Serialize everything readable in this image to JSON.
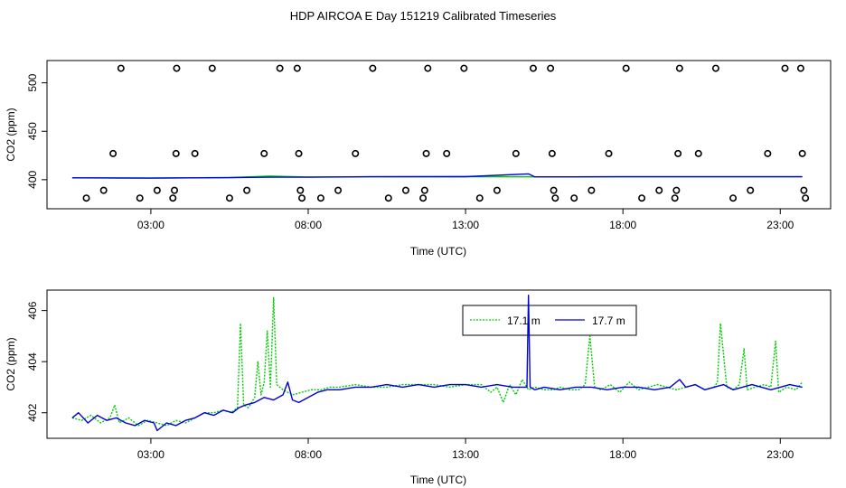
{
  "title": "HDP AIRCOA E  Day 151219  Calibrated Timeseries",
  "chart_data": [
    {
      "type": "scatter",
      "xlabel": "Time (UTC)",
      "ylabel": "CO2 (ppm)",
      "x_unit": "hours UTC",
      "xlim": [
        -0.3,
        24.6
      ],
      "ylim": [
        370,
        523
      ],
      "x_ticks": [
        3,
        8,
        13,
        18,
        23
      ],
      "x_tick_labels": [
        "03:00",
        "08:00",
        "13:00",
        "18:00",
        "23:00"
      ],
      "y_ticks": [
        400,
        450,
        500
      ],
      "y_tick_labels": [
        "400",
        "450",
        "500"
      ],
      "calibration_points": [
        {
          "x": 0.95,
          "y": 381
        },
        {
          "x": 1.5,
          "y": 389
        },
        {
          "x": 1.8,
          "y": 427
        },
        {
          "x": 2.05,
          "y": 515
        },
        {
          "x": 2.65,
          "y": 381
        },
        {
          "x": 3.2,
          "y": 389
        },
        {
          "x": 3.7,
          "y": 381
        },
        {
          "x": 3.75,
          "y": 389
        },
        {
          "x": 3.8,
          "y": 427
        },
        {
          "x": 3.82,
          "y": 515
        },
        {
          "x": 4.4,
          "y": 427
        },
        {
          "x": 4.95,
          "y": 515
        },
        {
          "x": 5.5,
          "y": 381
        },
        {
          "x": 6.05,
          "y": 389
        },
        {
          "x": 6.6,
          "y": 427
        },
        {
          "x": 7.1,
          "y": 515
        },
        {
          "x": 7.65,
          "y": 515
        },
        {
          "x": 7.7,
          "y": 427
        },
        {
          "x": 7.75,
          "y": 389
        },
        {
          "x": 7.8,
          "y": 381
        },
        {
          "x": 8.4,
          "y": 381
        },
        {
          "x": 8.95,
          "y": 389
        },
        {
          "x": 9.5,
          "y": 427
        },
        {
          "x": 10.05,
          "y": 515
        },
        {
          "x": 10.55,
          "y": 381
        },
        {
          "x": 11.1,
          "y": 389
        },
        {
          "x": 11.65,
          "y": 381
        },
        {
          "x": 11.7,
          "y": 389
        },
        {
          "x": 11.75,
          "y": 427
        },
        {
          "x": 11.8,
          "y": 515
        },
        {
          "x": 12.4,
          "y": 427
        },
        {
          "x": 12.95,
          "y": 515
        },
        {
          "x": 13.45,
          "y": 381
        },
        {
          "x": 14.0,
          "y": 389
        },
        {
          "x": 14.6,
          "y": 427
        },
        {
          "x": 15.15,
          "y": 515
        },
        {
          "x": 15.7,
          "y": 515
        },
        {
          "x": 15.75,
          "y": 427
        },
        {
          "x": 15.8,
          "y": 389
        },
        {
          "x": 15.85,
          "y": 381
        },
        {
          "x": 16.45,
          "y": 381
        },
        {
          "x": 17.0,
          "y": 389
        },
        {
          "x": 17.55,
          "y": 427
        },
        {
          "x": 18.1,
          "y": 515
        },
        {
          "x": 18.6,
          "y": 381
        },
        {
          "x": 19.15,
          "y": 389
        },
        {
          "x": 19.65,
          "y": 381
        },
        {
          "x": 19.7,
          "y": 389
        },
        {
          "x": 19.75,
          "y": 427
        },
        {
          "x": 19.8,
          "y": 515
        },
        {
          "x": 20.4,
          "y": 427
        },
        {
          "x": 20.95,
          "y": 515
        },
        {
          "x": 21.5,
          "y": 381
        },
        {
          "x": 22.05,
          "y": 389
        },
        {
          "x": 22.6,
          "y": 427
        },
        {
          "x": 23.15,
          "y": 515
        },
        {
          "x": 23.65,
          "y": 515
        },
        {
          "x": 23.7,
          "y": 427
        },
        {
          "x": 23.75,
          "y": 389
        },
        {
          "x": 23.8,
          "y": 381
        }
      ],
      "series": [
        {
          "name": "17.1 m",
          "color": "#00cc00",
          "x": [
            0.5,
            3,
            5.5,
            6.8,
            8,
            10,
            13,
            15,
            18,
            21,
            23.7
          ],
          "y": [
            402.0,
            401.6,
            402.2,
            403.8,
            402.7,
            403.0,
            403.1,
            402.9,
            403.0,
            403.0,
            403.0
          ]
        },
        {
          "name": "17.7 m",
          "color": "#0000dd",
          "x": [
            0.5,
            3,
            5.5,
            6.8,
            8,
            10,
            13,
            15,
            15.2,
            18,
            21,
            23.7
          ],
          "y": [
            401.9,
            401.6,
            402.1,
            402.6,
            402.6,
            403.0,
            403.1,
            406.0,
            402.9,
            403.0,
            403.0,
            403.0
          ]
        }
      ]
    },
    {
      "type": "line",
      "xlabel": "Time (UTC)",
      "ylabel": "CO2 (ppm)",
      "x_unit": "hours UTC",
      "xlim": [
        -0.3,
        24.6
      ],
      "ylim": [
        401.0,
        406.8
      ],
      "x_ticks": [
        3,
        8,
        13,
        18,
        23
      ],
      "x_tick_labels": [
        "03:00",
        "08:00",
        "13:00",
        "18:00",
        "23:00"
      ],
      "y_ticks": [
        402,
        404,
        406
      ],
      "y_tick_labels": [
        "402",
        "404",
        "406"
      ],
      "legend_position": "top-center-right",
      "series": [
        {
          "name": "17.1 m",
          "color": "#00cc00",
          "dashed": true,
          "x": [
            0.5,
            0.8,
            1.1,
            1.4,
            1.7,
            1.85,
            2.0,
            2.3,
            2.6,
            2.9,
            3.2,
            3.5,
            3.8,
            4.1,
            4.4,
            4.7,
            5.0,
            5.3,
            5.55,
            5.75,
            5.85,
            5.95,
            6.1,
            6.3,
            6.4,
            6.5,
            6.6,
            6.7,
            6.8,
            6.9,
            7.0,
            7.2,
            7.5,
            7.8,
            8.1,
            8.4,
            8.7,
            9.0,
            9.5,
            10.0,
            10.5,
            11.0,
            11.5,
            12.0,
            12.5,
            13.0,
            13.5,
            13.8,
            14.0,
            14.2,
            14.4,
            14.6,
            14.8,
            15.0,
            15.2,
            15.5,
            15.8,
            16.0,
            16.3,
            16.6,
            16.8,
            16.95,
            17.1,
            17.3,
            17.6,
            17.9,
            18.2,
            18.5,
            18.8,
            19.1,
            19.4,
            19.7,
            20.0,
            20.3,
            20.6,
            20.9,
            21.0,
            21.1,
            21.3,
            21.5,
            21.7,
            21.85,
            21.95,
            22.2,
            22.5,
            22.7,
            22.85,
            22.95,
            23.2,
            23.5,
            23.7
          ],
          "y": [
            401.8,
            401.7,
            401.9,
            401.6,
            401.8,
            402.3,
            401.6,
            401.8,
            401.5,
            401.7,
            401.6,
            401.5,
            401.7,
            401.6,
            401.8,
            402.0,
            402.0,
            402.1,
            402.0,
            402.2,
            405.5,
            402.3,
            402.2,
            402.6,
            404.0,
            402.7,
            403.2,
            405.2,
            403.0,
            406.5,
            403.1,
            402.9,
            402.7,
            402.8,
            402.9,
            402.9,
            403.0,
            403.0,
            403.1,
            403.0,
            403.0,
            403.1,
            403.1,
            403.1,
            403.0,
            403.1,
            403.1,
            402.8,
            403.0,
            402.4,
            403.1,
            402.7,
            403.3,
            402.9,
            403.0,
            402.9,
            402.9,
            403.0,
            402.9,
            402.9,
            403.1,
            405.0,
            403.0,
            402.9,
            403.1,
            402.8,
            403.2,
            402.9,
            403.0,
            403.1,
            403.0,
            402.9,
            403.0,
            403.1,
            402.9,
            403.0,
            403.2,
            405.5,
            403.0,
            402.9,
            403.1,
            404.5,
            402.9,
            403.0,
            403.1,
            403.0,
            404.8,
            402.8,
            403.0,
            402.9,
            403.2
          ]
        },
        {
          "name": "17.7 m",
          "color": "#0000dd",
          "dashed": false,
          "x": [
            0.5,
            0.7,
            1.0,
            1.3,
            1.6,
            1.9,
            2.2,
            2.5,
            2.8,
            3.1,
            3.2,
            3.5,
            3.8,
            4.1,
            4.4,
            4.7,
            5.0,
            5.3,
            5.6,
            5.8,
            6.0,
            6.3,
            6.6,
            6.9,
            7.2,
            7.35,
            7.5,
            7.7,
            8.0,
            8.3,
            8.6,
            9.0,
            9.5,
            10.0,
            10.5,
            11.0,
            11.5,
            12.0,
            12.5,
            13.0,
            13.5,
            14.0,
            14.5,
            14.8,
            14.95,
            15.0,
            15.05,
            15.2,
            15.5,
            16.0,
            16.5,
            17.0,
            17.5,
            18.0,
            18.5,
            19.0,
            19.5,
            19.8,
            20.0,
            20.3,
            20.6,
            20.9,
            21.2,
            21.5,
            21.8,
            22.1,
            22.4,
            22.7,
            23.0,
            23.3,
            23.7
          ],
          "y": [
            401.8,
            402.0,
            401.6,
            401.9,
            401.7,
            401.8,
            401.6,
            401.5,
            401.7,
            401.6,
            401.3,
            401.6,
            401.5,
            401.7,
            401.8,
            402.0,
            401.9,
            402.1,
            402.0,
            402.2,
            402.3,
            402.4,
            402.6,
            402.5,
            402.7,
            403.2,
            402.5,
            402.4,
            402.6,
            402.8,
            402.9,
            402.9,
            403.0,
            403.0,
            403.1,
            403.0,
            403.1,
            403.0,
            403.1,
            403.1,
            403.0,
            403.1,
            403.0,
            403.0,
            403.0,
            406.6,
            403.0,
            402.9,
            403.0,
            402.9,
            403.0,
            403.0,
            402.9,
            403.0,
            403.0,
            402.9,
            403.0,
            403.3,
            403.0,
            403.1,
            402.9,
            403.0,
            403.1,
            402.9,
            403.0,
            403.1,
            403.0,
            402.9,
            403.0,
            403.1,
            403.0
          ]
        }
      ]
    }
  ]
}
